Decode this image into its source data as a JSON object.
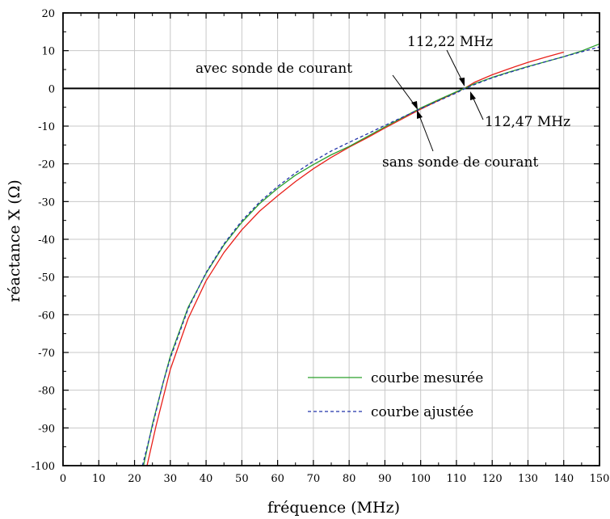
{
  "chart_data": {
    "type": "line",
    "xlabel": "fréquence (MHz)",
    "ylabel": "réactance X (Ω)",
    "xlim": [
      0,
      150
    ],
    "ylim": [
      -100,
      20
    ],
    "xticks": [
      0,
      10,
      20,
      30,
      40,
      50,
      60,
      70,
      80,
      90,
      100,
      110,
      120,
      130,
      140,
      150
    ],
    "yticks": [
      20,
      10,
      0,
      -10,
      -20,
      -30,
      -40,
      -50,
      -60,
      -70,
      -80,
      -90,
      -100
    ],
    "grid": true,
    "legend_position": "bottom-right",
    "series": [
      {
        "name": "courbe mesurée",
        "color": "#2ca02c",
        "style": "solid",
        "x": [
          22.5,
          25,
          28,
          30,
          35,
          40,
          45,
          50,
          55,
          60,
          65,
          70,
          75,
          80,
          85,
          90,
          95,
          100,
          105,
          110,
          112.22,
          115,
          120,
          125,
          130,
          135,
          140,
          145,
          150
        ],
        "y": [
          -100,
          -89,
          -78,
          -71,
          -58,
          -49,
          -41.5,
          -35.5,
          -30.5,
          -26.5,
          -23,
          -20.2,
          -17.6,
          -15.4,
          -12.8,
          -10.2,
          -7.7,
          -5.2,
          -3,
          -0.9,
          0,
          1.2,
          2.9,
          4.4,
          5.8,
          7.1,
          8.4,
          9.9,
          11.8
        ]
      },
      {
        "name": "courbe ajustée",
        "color": "#2233aa",
        "style": "dashed",
        "x": [
          22.2,
          25,
          28,
          30,
          35,
          40,
          45,
          50,
          55,
          60,
          65,
          70,
          75,
          80,
          85,
          90,
          95,
          100,
          105,
          110,
          112.47,
          115,
          120,
          125,
          130,
          135,
          140,
          145,
          150
        ],
        "y": [
          -100,
          -89.5,
          -78,
          -71.5,
          -58.4,
          -48.8,
          -41.2,
          -35.1,
          -30.1,
          -26,
          -22.4,
          -19.3,
          -16.6,
          -14.3,
          -12.1,
          -9.8,
          -7.6,
          -5.4,
          -3.3,
          -1.2,
          0,
          1,
          2.8,
          4.3,
          5.7,
          7.1,
          8.4,
          9.7,
          11
        ]
      },
      {
        "color": "#e8201a",
        "style": "solid",
        "x": [
          23.5,
          26,
          30,
          35,
          40,
          45,
          50,
          55,
          60,
          65,
          70,
          75,
          80,
          85,
          90,
          95,
          100,
          105,
          110,
          112.22,
          115,
          120,
          125,
          130,
          135,
          140
        ],
        "y": [
          -100,
          -89.5,
          -74.5,
          -61,
          -51,
          -43.5,
          -37.5,
          -32.5,
          -28.5,
          -24.7,
          -21.3,
          -18.3,
          -15.6,
          -13.1,
          -10.5,
          -8,
          -5.5,
          -3.2,
          -1,
          0,
          1.6,
          3.6,
          5.3,
          6.9,
          8.3,
          9.6
        ]
      }
    ],
    "annotations": [
      {
        "text": "112,22 MHz",
        "x": 112.22,
        "y": 0
      },
      {
        "text": "avec sonde de courant",
        "x": 98,
        "y": -5
      },
      {
        "text": "112,47 MHz",
        "x": 112.47,
        "y": 0
      },
      {
        "text": "sans sonde de courant",
        "x": 100,
        "y": -4
      }
    ],
    "legend": [
      {
        "label": "courbe mesurée",
        "color": "#2ca02c",
        "style": "solid"
      },
      {
        "label": "courbe ajustée",
        "color": "#2233aa",
        "style": "dashed"
      }
    ]
  }
}
